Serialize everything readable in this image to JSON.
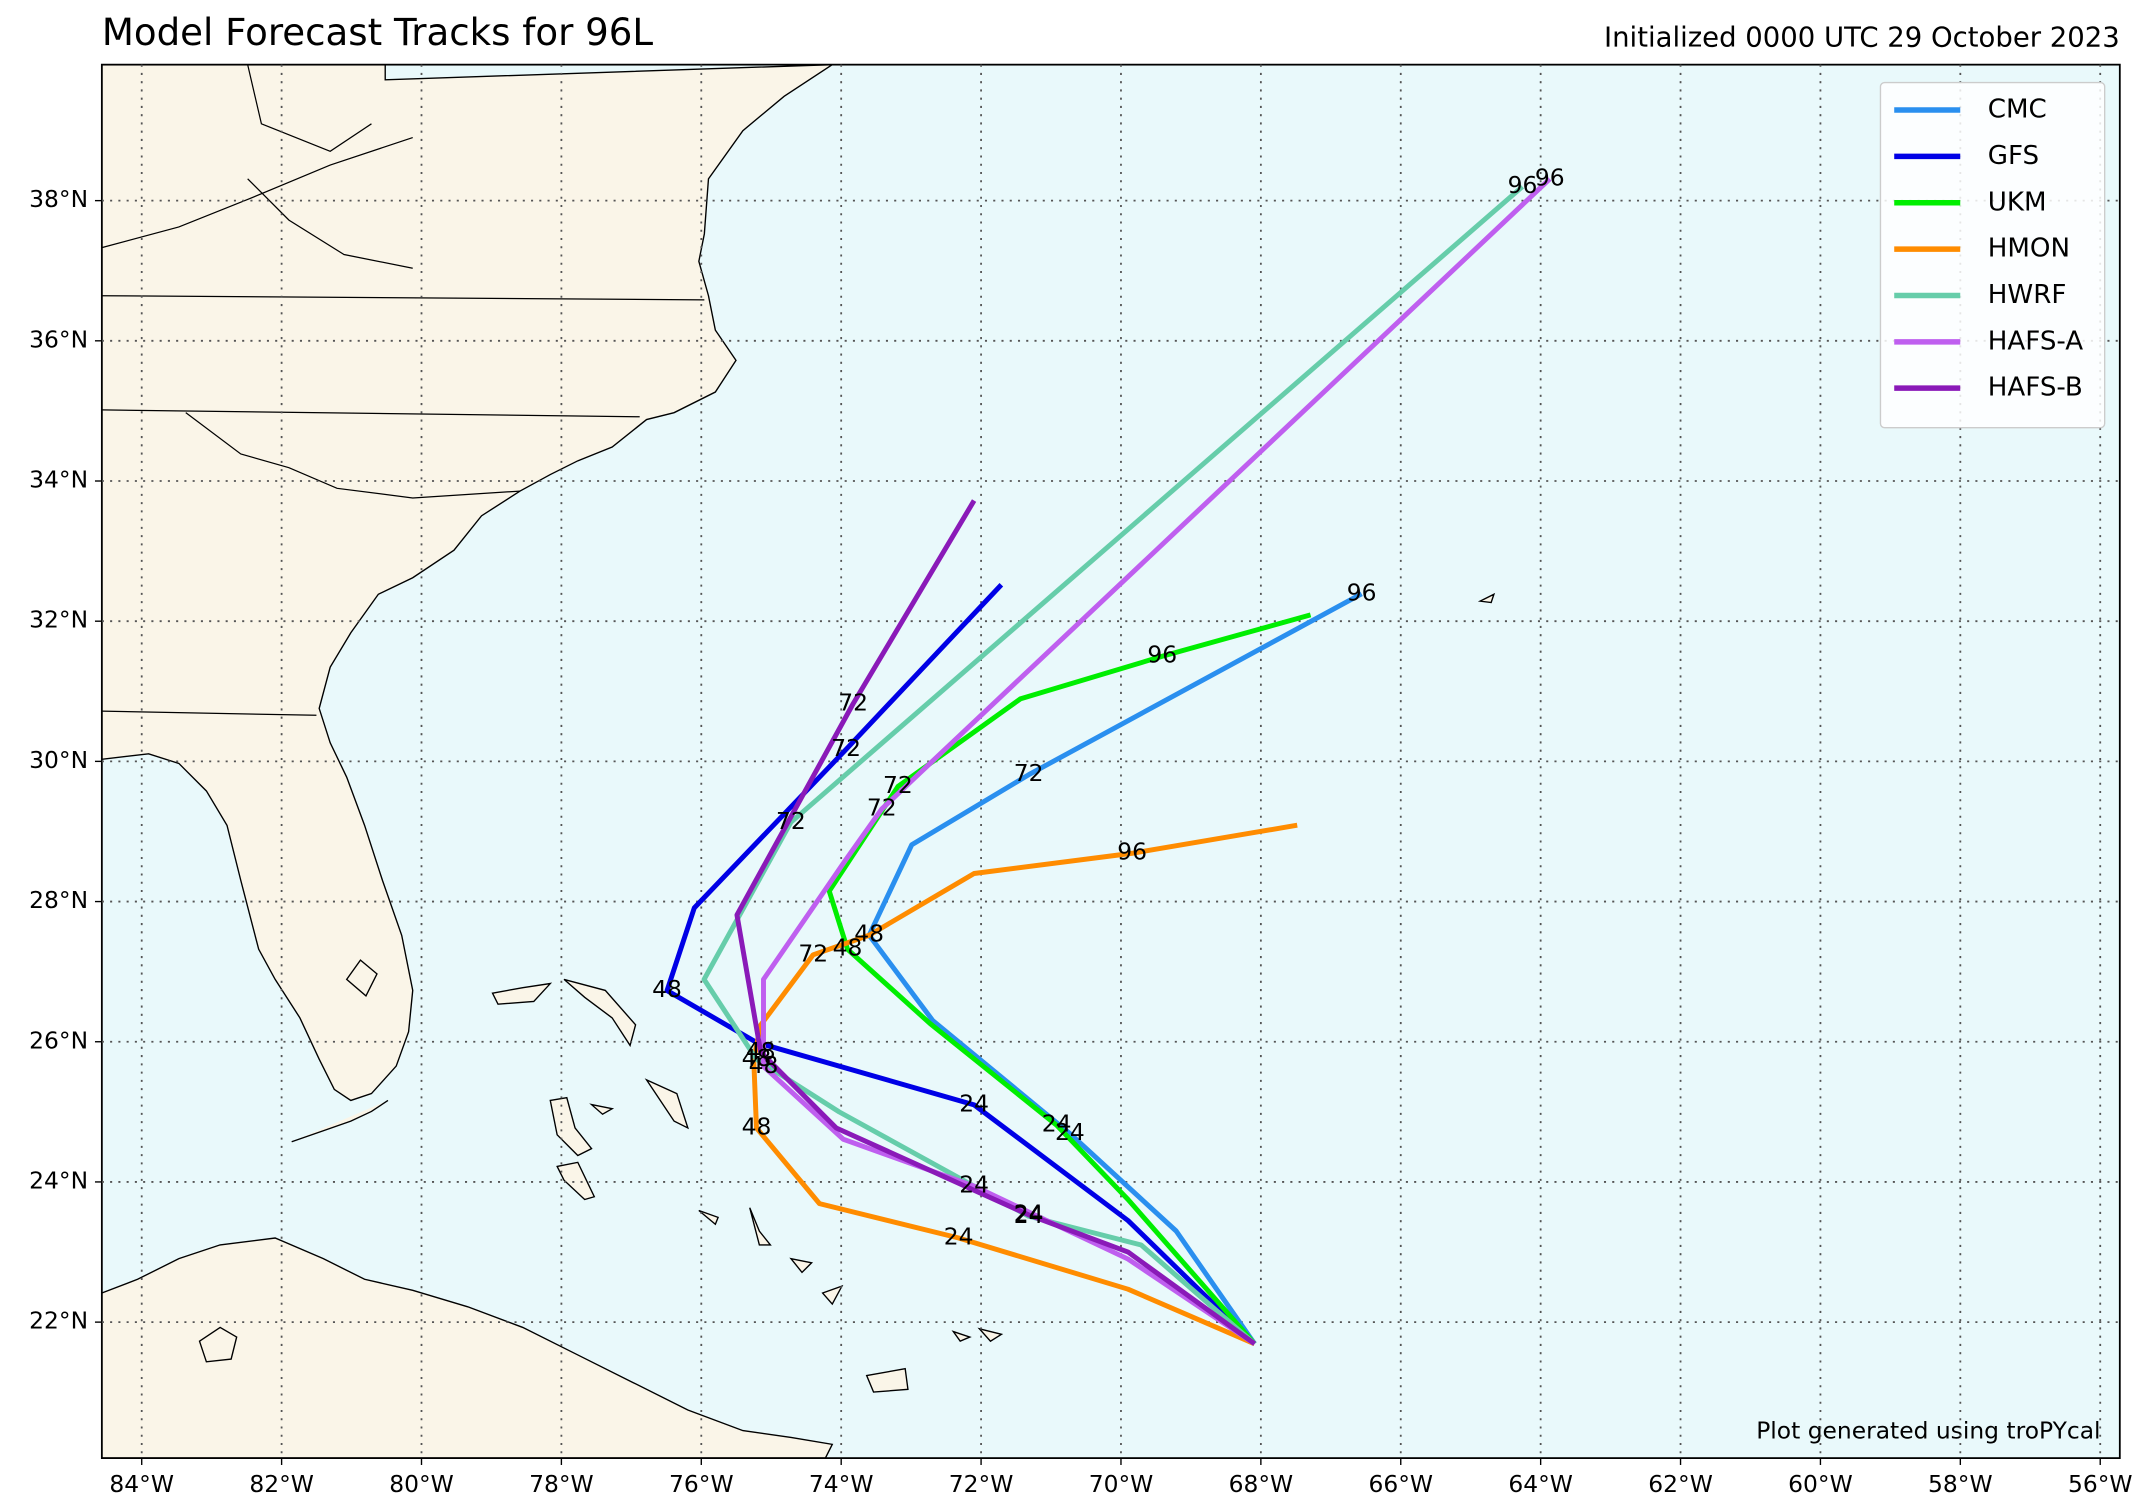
{
  "chart_data": {
    "type": "track-map",
    "title": "Model Forecast Tracks for 96L",
    "subtitle": "Initialized 0000 UTC 29 October 2023",
    "credit": "Plot generated using troPYcal",
    "xlim": [
      -84.57,
      -55.72
    ],
    "ylim": [
      20.06,
      39.94
    ],
    "xticks": [
      {
        "value": -84,
        "label": "84°W"
      },
      {
        "value": -82,
        "label": "82°W"
      },
      {
        "value": -80,
        "label": "80°W"
      },
      {
        "value": -78,
        "label": "78°W"
      },
      {
        "value": -76,
        "label": "76°W"
      },
      {
        "value": -74,
        "label": "74°W"
      },
      {
        "value": -72,
        "label": "72°W"
      },
      {
        "value": -70,
        "label": "70°W"
      },
      {
        "value": -68,
        "label": "68°W"
      },
      {
        "value": -66,
        "label": "66°W"
      },
      {
        "value": -64,
        "label": "64°W"
      },
      {
        "value": -62,
        "label": "62°W"
      },
      {
        "value": -60,
        "label": "60°W"
      },
      {
        "value": -58,
        "label": "58°W"
      },
      {
        "value": -56,
        "label": "56°W"
      }
    ],
    "yticks": [
      {
        "value": 22,
        "label": "22°N"
      },
      {
        "value": 24,
        "label": "24°N"
      },
      {
        "value": 26,
        "label": "26°N"
      },
      {
        "value": 28,
        "label": "28°N"
      },
      {
        "value": 30,
        "label": "30°N"
      },
      {
        "value": 32,
        "label": "32°N"
      },
      {
        "value": 34,
        "label": "34°N"
      },
      {
        "value": 36,
        "label": "36°N"
      },
      {
        "value": 38,
        "label": "38°N"
      }
    ],
    "grid": true,
    "legend": "upper right",
    "series": [
      {
        "name": "CMC",
        "color": "#2a8fef",
        "lon": [
          -68.09,
          -69.21,
          -70.73,
          -72.69,
          -73.6,
          -72.99,
          -71.32,
          -66.56
        ],
        "lat": [
          21.69,
          23.3,
          24.69,
          26.3,
          27.52,
          28.81,
          29.81,
          32.39
        ],
        "hours": [
          null,
          null,
          24,
          null,
          48,
          null,
          72,
          96
        ]
      },
      {
        "name": "GFS",
        "color": "#0000e6",
        "lon": [
          -68.09,
          -69.9,
          -72.1,
          -75.21,
          -76.49,
          -76.1,
          -73.93,
          -71.71
        ],
        "lat": [
          21.69,
          23.45,
          25.1,
          25.99,
          26.73,
          27.91,
          30.17,
          32.52
        ],
        "hours": [
          null,
          null,
          24,
          null,
          48,
          null,
          72,
          null
        ]
      },
      {
        "name": "UKM",
        "color": "#00ee00",
        "lon": [
          -68.09,
          -69.9,
          -70.92,
          -72.73,
          -73.91,
          -74.17,
          -73.19,
          -71.44,
          -69.41,
          -67.29
        ],
        "lat": [
          21.69,
          23.75,
          24.81,
          26.26,
          27.32,
          28.15,
          29.64,
          30.89,
          31.5,
          32.09
        ],
        "hours": [
          null,
          null,
          24,
          null,
          48,
          null,
          72,
          null,
          96,
          null
        ]
      },
      {
        "name": "HMON",
        "color": "#ff8c00",
        "lon": [
          -68.09,
          -69.9,
          -72.32,
          -74.31,
          -75.21,
          -75.25,
          -75.15,
          -74.4,
          -73.6,
          -72.1,
          -69.84,
          -67.48
        ],
        "lat": [
          21.69,
          22.47,
          23.2,
          23.69,
          24.77,
          25.75,
          26.24,
          27.24,
          27.52,
          28.4,
          28.69,
          29.09
        ],
        "hours": [
          null,
          null,
          24,
          null,
          48,
          null,
          null,
          72,
          null,
          null,
          96,
          null
        ]
      },
      {
        "name": "HWRF",
        "color": "#66cdaa",
        "lon": [
          -68.09,
          -69.71,
          -71.32,
          -74.03,
          -75.21,
          -75.96,
          -74.72,
          -64.26
        ],
        "lat": [
          21.69,
          23.1,
          23.51,
          25.0,
          25.75,
          26.89,
          29.13,
          38.2
        ],
        "hours": [
          null,
          null,
          24,
          null,
          48,
          null,
          72,
          96
        ]
      },
      {
        "name": "HAFS-A",
        "color": "#bf5fef",
        "lon": [
          -68.09,
          -69.9,
          -72.1,
          -73.97,
          -75.11,
          -75.11,
          -73.93,
          -73.42,
          -63.87
        ],
        "lat": [
          21.69,
          22.9,
          23.94,
          24.61,
          25.65,
          26.89,
          28.6,
          29.32,
          38.31
        ],
        "hours": [
          null,
          null,
          24,
          null,
          48,
          null,
          null,
          72,
          96
        ]
      },
      {
        "name": "HAFS-B",
        "color": "#8a1ab8",
        "lon": [
          -68.09,
          -69.9,
          -71.32,
          -74.07,
          -75.15,
          -75.49,
          -73.83,
          -72.1
        ],
        "lat": [
          21.69,
          23.0,
          23.53,
          24.77,
          25.85,
          27.81,
          30.82,
          33.72
        ],
        "hours": [
          null,
          null,
          24,
          null,
          48,
          null,
          72,
          null
        ]
      }
    ]
  }
}
